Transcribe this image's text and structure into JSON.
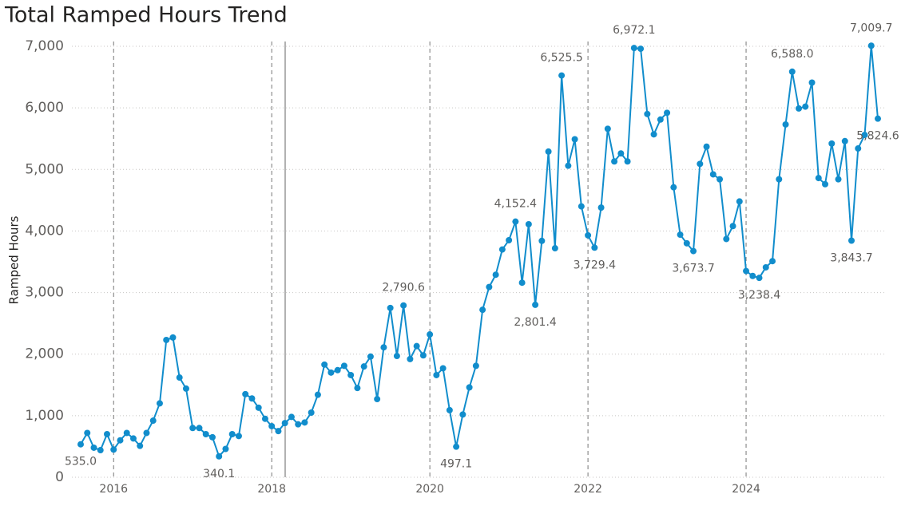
{
  "chart_data": {
    "type": "line",
    "title": "Total Ramped Hours Trend",
    "y_label": "Ramped Hours",
    "color": "#118dcc",
    "categories": [
      null,
      null,
      null,
      null,
      null,
      "2016",
      null,
      null,
      null,
      null,
      null,
      null,
      null,
      null,
      null,
      null,
      null,
      null,
      null,
      null,
      null,
      null,
      null,
      null,
      null,
      null,
      null,
      null,
      null,
      "2018",
      null,
      null,
      null,
      null,
      null,
      null,
      null,
      null,
      null,
      null,
      null,
      null,
      null,
      null,
      null,
      null,
      null,
      null,
      null,
      null,
      null,
      null,
      null,
      "2020",
      null,
      null,
      null,
      null,
      null,
      null,
      null,
      null,
      null,
      null,
      null,
      null,
      null,
      null,
      null,
      null,
      null,
      null,
      null,
      null,
      null,
      null,
      null,
      "2022",
      null,
      null,
      null,
      null,
      null,
      null,
      null,
      null,
      null,
      null,
      null,
      null,
      null,
      null,
      null,
      null,
      null,
      null,
      null,
      null,
      null,
      null,
      null,
      "2024",
      null,
      null,
      null,
      null,
      null,
      null,
      null,
      null,
      null,
      null,
      null,
      null,
      null,
      null,
      null,
      null,
      null,
      null,
      null,
      null
    ],
    "values": [
      535,
      720,
      480,
      440,
      700,
      450,
      600,
      720,
      630,
      510,
      720,
      920,
      1200,
      2230,
      2270,
      1620,
      1440,
      800,
      800,
      700,
      650,
      340.1,
      460,
      700,
      670,
      1350,
      1280,
      1130,
      950,
      830,
      750,
      880,
      980,
      860,
      890,
      1050,
      1340,
      1830,
      1700,
      1740,
      1810,
      1660,
      1450,
      1800,
      1960,
      1270,
      2110,
      2750,
      1970,
      2790.6,
      1920,
      2130,
      1980,
      2320,
      1660,
      1770,
      1090,
      497.1,
      1020,
      1460,
      1810,
      2720,
      3090,
      3290,
      3700,
      3850,
      4152.4,
      3160,
      4110,
      2801.4,
      3840,
      5290,
      3720,
      6525.5,
      5060,
      5490,
      4400,
      3930,
      3729.4,
      4380,
      5660,
      5130,
      5260,
      5130,
      6972.1,
      6960,
      5900,
      5570,
      5810,
      5920,
      4710,
      3940,
      3800,
      3673.7,
      5090,
      5370,
      4920,
      4840,
      3870,
      4080,
      4480,
      3350,
      3270,
      3238.4,
      3410,
      3510,
      4840,
      5730,
      6588,
      5990,
      6020,
      6410,
      4860,
      4760,
      5420,
      4840,
      5460,
      3843.7,
      5340,
      5560,
      7009.7,
      5824.6
    ],
    "value_labels": [
      "535.0",
      null,
      null,
      null,
      null,
      null,
      null,
      null,
      null,
      null,
      null,
      null,
      null,
      null,
      null,
      null,
      null,
      null,
      null,
      null,
      null,
      "340.1",
      null,
      null,
      null,
      null,
      null,
      null,
      null,
      null,
      null,
      null,
      null,
      null,
      null,
      null,
      null,
      null,
      null,
      null,
      null,
      null,
      null,
      null,
      null,
      null,
      null,
      null,
      null,
      "2,790.6",
      null,
      null,
      null,
      null,
      null,
      null,
      null,
      "497.1",
      null,
      null,
      null,
      null,
      null,
      null,
      null,
      null,
      "4,152.4",
      null,
      null,
      "2,801.4",
      null,
      null,
      null,
      "6,525.5",
      null,
      null,
      null,
      null,
      "3,729.4",
      null,
      null,
      null,
      null,
      null,
      "6,972.1",
      null,
      null,
      null,
      null,
      null,
      null,
      null,
      null,
      "3,673.7",
      null,
      null,
      null,
      null,
      null,
      null,
      null,
      null,
      null,
      "3,238.4",
      null,
      null,
      null,
      null,
      "6,588.0",
      null,
      null,
      null,
      null,
      null,
      null,
      null,
      null,
      "3,843.7",
      null,
      null,
      "7,009.7",
      "5,824.6"
    ],
    "ylim": [
      0,
      7000
    ],
    "yticks": [
      0,
      {
        "value": 1000,
        "label": "1,000"
      },
      {
        "value": 2000,
        "label": "2,000"
      },
      {
        "value": 3000,
        "label": "3,000"
      },
      {
        "value": 4000,
        "label": "4,000"
      },
      {
        "value": 5000,
        "label": "5,000"
      },
      {
        "value": 6000,
        "label": "6,000"
      },
      {
        "value": 7000,
        "label": "7,000"
      }
    ],
    "grid": true
  }
}
